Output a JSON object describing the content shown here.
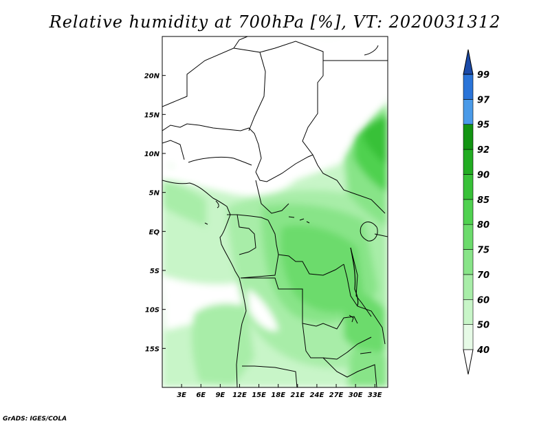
{
  "title": "Relative humidity at 700hPa [%], VT: 2020031312",
  "credit": "GrADS: IGES/COLA",
  "map": {
    "lat_range": [
      -20,
      25
    ],
    "lon_range": [
      0,
      35
    ],
    "lat_ticks": [
      {
        "value": 20,
        "label": "20N"
      },
      {
        "value": 15,
        "label": "15N"
      },
      {
        "value": 10,
        "label": "10N"
      },
      {
        "value": 5,
        "label": "5N"
      },
      {
        "value": 0,
        "label": "EQ"
      },
      {
        "value": -5,
        "label": "5S"
      },
      {
        "value": -10,
        "label": "10S"
      },
      {
        "value": -15,
        "label": "15S"
      }
    ],
    "lon_ticks": [
      {
        "value": 3,
        "label": "3E"
      },
      {
        "value": 6,
        "label": "6E"
      },
      {
        "value": 9,
        "label": "9E"
      },
      {
        "value": 12,
        "label": "12E"
      },
      {
        "value": 15,
        "label": "15E"
      },
      {
        "value": 18,
        "label": "18E"
      },
      {
        "value": 21,
        "label": "21E"
      },
      {
        "value": 24,
        "label": "24E"
      },
      {
        "value": 27,
        "label": "27E"
      },
      {
        "value": 30,
        "label": "30E"
      },
      {
        "value": 33,
        "label": "33E"
      }
    ]
  },
  "colorbar": {
    "levels": [
      {
        "label": "40",
        "color": "#e6fae6"
      },
      {
        "label": "50",
        "color": "#c8f5c8"
      },
      {
        "label": "60",
        "color": "#a8eda8"
      },
      {
        "label": "70",
        "color": "#88e488"
      },
      {
        "label": "75",
        "color": "#6cdb6c"
      },
      {
        "label": "80",
        "color": "#50d150"
      },
      {
        "label": "85",
        "color": "#38c138"
      },
      {
        "label": "90",
        "color": "#22ac22"
      },
      {
        "label": "92",
        "color": "#129412"
      },
      {
        "label": "95",
        "color": "#4a9ae8"
      },
      {
        "label": "97",
        "color": "#2a74d8"
      },
      {
        "label": "99",
        "color": "#1a50b4"
      }
    ],
    "low_cap_color": "#ffffff",
    "high_cap_color": "#1a4aa8"
  }
}
